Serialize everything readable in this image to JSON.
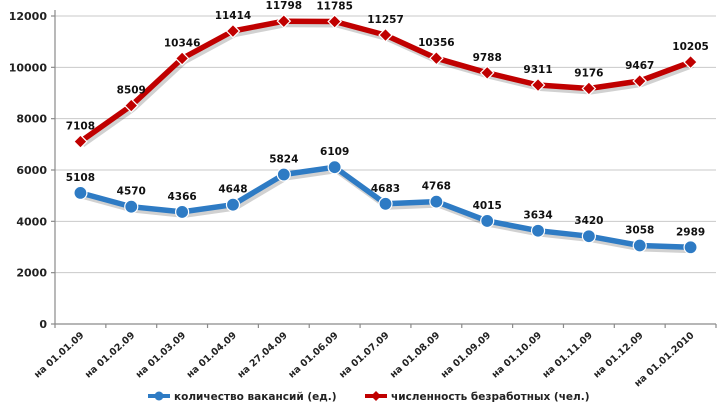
{
  "chart_data": {
    "type": "line",
    "title": "",
    "xlabel": "",
    "ylabel": "",
    "ylim": [
      0,
      12000
    ],
    "yticks": [
      0,
      2000,
      4000,
      6000,
      8000,
      10000,
      12000
    ],
    "grid": true,
    "legend_position": "bottom",
    "categories": [
      "на 01.01.09",
      "на 01.02.09",
      "на 01.03.09",
      "на 01.04.09",
      "на 27.04.09",
      "на 01.06.09",
      "на 01.07.09",
      "на 01.08.09",
      "на 01.09.09",
      "на 01.10.09",
      "на 01.11.09",
      "на 01.12.09",
      "на 01.01.2010"
    ],
    "series": [
      {
        "name": "количество вакансий (ед.)",
        "color": "#2e7bc4",
        "marker": "circle",
        "values": [
          5108,
          4570,
          4366,
          4648,
          5824,
          6109,
          4683,
          4768,
          4015,
          3634,
          3420,
          3058,
          2989
        ]
      },
      {
        "name": "численность безработных (чел.)",
        "color": "#c00000",
        "marker": "diamond",
        "values": [
          7108,
          8509,
          10346,
          11414,
          11798,
          11785,
          11257,
          10356,
          9788,
          9311,
          9176,
          9467,
          10205
        ]
      }
    ]
  }
}
